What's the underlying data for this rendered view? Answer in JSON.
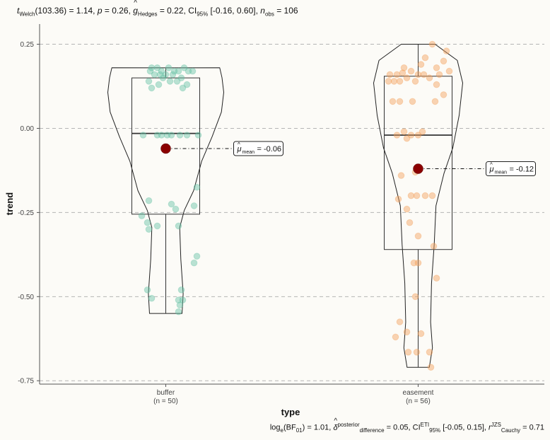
{
  "title": {
    "t_label": "t",
    "t_sub": "Welch",
    "t_stat": "(103.36) = 1.14",
    "p_label": "p",
    "p_value": " = 0.26",
    "g_label": "g",
    "g_sub": "Hedges",
    "g_value": " = 0.22",
    "ci_label": "CI",
    "ci_sub": "95%",
    "ci_value": " [-0.16, 0.60]",
    "n_label": "n",
    "n_sub": "obs",
    "n_value": " = 106"
  },
  "caption": {
    "bf_text": "log",
    "bf_sub": "e",
    "bf_rest": "(BF",
    "bf_sub2": "01",
    "bf_value": ") = 1.01, ",
    "delta_label": "δ",
    "delta_sup": "posterior",
    "delta_sub": "difference",
    "delta_value": " = 0.05, CI",
    "ci_sup": "ETI",
    "ci_sub": "95%",
    "ci_value": " [-0.05, 0.15], ",
    "r_label": "r",
    "r_sup": "JZS",
    "r_sub": "Cauchy",
    "r_value": " = 0.71"
  },
  "chart_data": {
    "type": "scatter",
    "subtype": "violin + boxplot + jittered points",
    "xlabel": "type",
    "ylabel": "trend",
    "ylim": [
      -0.76,
      0.31
    ],
    "y_ticks": [
      0.25,
      0.0,
      -0.25,
      -0.5,
      -0.75
    ],
    "y_tick_labels": [
      "0.25",
      "0.00",
      "-0.25",
      "-0.50",
      "-0.75"
    ],
    "grid": "horizontal dashed",
    "categories": [
      "buffer",
      "easement"
    ],
    "category_n_labels": [
      "(n = 50)",
      "(n = 56)"
    ],
    "colors": {
      "buffer": "#66c2a5",
      "easement": "#f4a05a",
      "mean": "#8b0000",
      "grid": "#b5b5b5"
    },
    "series": [
      {
        "name": "buffer",
        "n": 50,
        "mean": -0.06,
        "mean_label": "= -0.06",
        "box": {
          "q1": -0.255,
          "median": -0.015,
          "q3": 0.15,
          "whisker_low": -0.55,
          "whisker_high": 0.18
        },
        "violin": {
          "min": -0.55,
          "max": 0.18
        },
        "points": [
          [
            -0.1,
            0.18
          ],
          [
            -0.06,
            0.18
          ],
          [
            -0.03,
            0.17
          ],
          [
            0.02,
            0.18
          ],
          [
            0.06,
            0.17
          ],
          [
            0.09,
            0.17
          ],
          [
            0.13,
            0.18
          ],
          [
            -0.11,
            0.17
          ],
          [
            0.16,
            0.17
          ],
          [
            0.19,
            0.17
          ],
          [
            -0.08,
            0.16
          ],
          [
            -0.04,
            0.16
          ],
          [
            0.0,
            0.16
          ],
          [
            0.05,
            0.16
          ],
          [
            -0.12,
            0.14
          ],
          [
            -0.02,
            0.15
          ],
          [
            0.03,
            0.14
          ],
          [
            0.11,
            0.15
          ],
          [
            -0.05,
            0.13
          ],
          [
            0.08,
            0.14
          ],
          [
            0.15,
            0.13
          ],
          [
            -0.1,
            0.12
          ],
          [
            0.12,
            0.12
          ],
          [
            -0.06,
            -0.02
          ],
          [
            -0.03,
            -0.02
          ],
          [
            0.01,
            -0.02
          ],
          [
            0.04,
            -0.02
          ],
          [
            0.1,
            -0.02
          ],
          [
            0.15,
            -0.02
          ],
          [
            0.23,
            -0.02
          ],
          [
            -0.16,
            -0.02
          ],
          [
            0.22,
            -0.175
          ],
          [
            -0.12,
            -0.215
          ],
          [
            0.04,
            -0.225
          ],
          [
            0.2,
            -0.23
          ],
          [
            0.07,
            -0.24
          ],
          [
            -0.17,
            -0.26
          ],
          [
            -0.13,
            -0.28
          ],
          [
            -0.06,
            -0.29
          ],
          [
            0.09,
            -0.29
          ],
          [
            -0.12,
            -0.3
          ],
          [
            0.22,
            -0.38
          ],
          [
            0.2,
            -0.4
          ],
          [
            -0.13,
            -0.48
          ],
          [
            0.11,
            -0.48
          ],
          [
            0.09,
            -0.51
          ],
          [
            -0.1,
            -0.505
          ],
          [
            0.1,
            -0.525
          ],
          [
            0.12,
            -0.51
          ],
          [
            0.09,
            -0.545
          ]
        ]
      },
      {
        "name": "easement",
        "n": 56,
        "mean": -0.12,
        "mean_label": "= -0.12",
        "box": {
          "q1": -0.36,
          "median": -0.02,
          "q3": 0.155,
          "whisker_low": -0.71,
          "whisker_high": 0.25
        },
        "violin": {
          "min": -0.71,
          "max": 0.25
        },
        "points": [
          [
            0.1,
            0.25
          ],
          [
            0.2,
            0.23
          ],
          [
            0.05,
            0.21
          ],
          [
            0.18,
            0.2
          ],
          [
            -0.1,
            0.18
          ],
          [
            0.02,
            0.19
          ],
          [
            0.13,
            0.18
          ],
          [
            0.22,
            0.17
          ],
          [
            -0.2,
            0.16
          ],
          [
            -0.15,
            0.16
          ],
          [
            -0.11,
            0.165
          ],
          [
            -0.05,
            0.17
          ],
          [
            0.0,
            0.16
          ],
          [
            0.04,
            0.16
          ],
          [
            0.15,
            0.16
          ],
          [
            -0.21,
            0.14
          ],
          [
            -0.17,
            0.14
          ],
          [
            -0.13,
            0.14
          ],
          [
            -0.08,
            0.15
          ],
          [
            -0.02,
            0.14
          ],
          [
            0.08,
            0.15
          ],
          [
            0.13,
            0.13
          ],
          [
            -0.18,
            0.08
          ],
          [
            -0.13,
            0.08
          ],
          [
            -0.04,
            0.08
          ],
          [
            0.12,
            0.08
          ],
          [
            0.18,
            0.1
          ],
          [
            -0.15,
            -0.02
          ],
          [
            -0.1,
            -0.01
          ],
          [
            -0.05,
            -0.02
          ],
          [
            0.0,
            -0.02
          ],
          [
            0.03,
            -0.01
          ],
          [
            -0.08,
            -0.03
          ],
          [
            -0.12,
            -0.14
          ],
          [
            -0.02,
            -0.13
          ],
          [
            -0.05,
            -0.2
          ],
          [
            -0.01,
            -0.2
          ],
          [
            0.05,
            -0.2
          ],
          [
            0.1,
            -0.2
          ],
          [
            -0.14,
            -0.21
          ],
          [
            -0.08,
            -0.24
          ],
          [
            -0.06,
            -0.28
          ],
          [
            0.0,
            -0.32
          ],
          [
            0.11,
            -0.35
          ],
          [
            0.0,
            -0.4
          ],
          [
            -0.03,
            -0.4
          ],
          [
            0.13,
            -0.445
          ],
          [
            -0.02,
            -0.5
          ],
          [
            -0.13,
            -0.575
          ],
          [
            -0.08,
            -0.605
          ],
          [
            -0.16,
            -0.62
          ],
          [
            0.02,
            -0.61
          ],
          [
            -0.07,
            -0.665
          ],
          [
            -0.01,
            -0.665
          ],
          [
            0.08,
            -0.665
          ],
          [
            0.09,
            -0.71
          ]
        ]
      }
    ]
  }
}
